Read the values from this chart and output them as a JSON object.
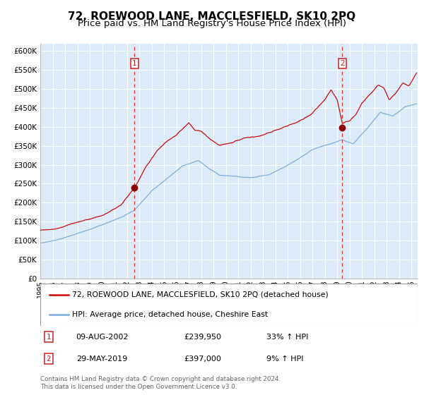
{
  "title": "72, ROEWOOD LANE, MACCLESFIELD, SK10 2PQ",
  "subtitle": "Price paid vs. HM Land Registry's House Price Index (HPI)",
  "ylim": [
    0,
    620000
  ],
  "yticks": [
    0,
    50000,
    100000,
    150000,
    200000,
    250000,
    300000,
    350000,
    400000,
    450000,
    500000,
    550000,
    600000
  ],
  "ytick_labels": [
    "£0",
    "£50K",
    "£100K",
    "£150K",
    "£200K",
    "£250K",
    "£300K",
    "£350K",
    "£400K",
    "£450K",
    "£500K",
    "£550K",
    "£600K"
  ],
  "xlim_start": 1995.0,
  "xlim_end": 2025.5,
  "xtick_years": [
    1995,
    1996,
    1997,
    1998,
    1999,
    2000,
    2001,
    2002,
    2003,
    2004,
    2005,
    2006,
    2007,
    2008,
    2009,
    2010,
    2011,
    2012,
    2013,
    2014,
    2015,
    2016,
    2017,
    2018,
    2019,
    2020,
    2021,
    2022,
    2023,
    2024,
    2025
  ],
  "sale1_x": 2002.608,
  "sale1_y": 239950,
  "sale2_x": 2019.413,
  "sale2_y": 397000,
  "sale1_date": "09-AUG-2002",
  "sale1_price": "£239,950",
  "sale1_hpi": "33% ↑ HPI",
  "sale2_date": "29-MAY-2019",
  "sale2_price": "£397,000",
  "sale2_hpi": "9% ↑ HPI",
  "line1_color": "#cc0000",
  "line2_color": "#7aabdb",
  "dot_color": "#8b0000",
  "vline_color": "#ee3333",
  "bg_color": "#ddeaf7",
  "grid_color": "#ffffff",
  "legend1_label": "72, ROEWOOD LANE, MACCLESFIELD, SK10 2PQ (detached house)",
  "legend2_label": "HPI: Average price, detached house, Cheshire East",
  "footer": "Contains HM Land Registry data © Crown copyright and database right 2024.\nThis data is licensed under the Open Government Licence v3.0.",
  "title_fontsize": 11,
  "subtitle_fontsize": 9.5
}
